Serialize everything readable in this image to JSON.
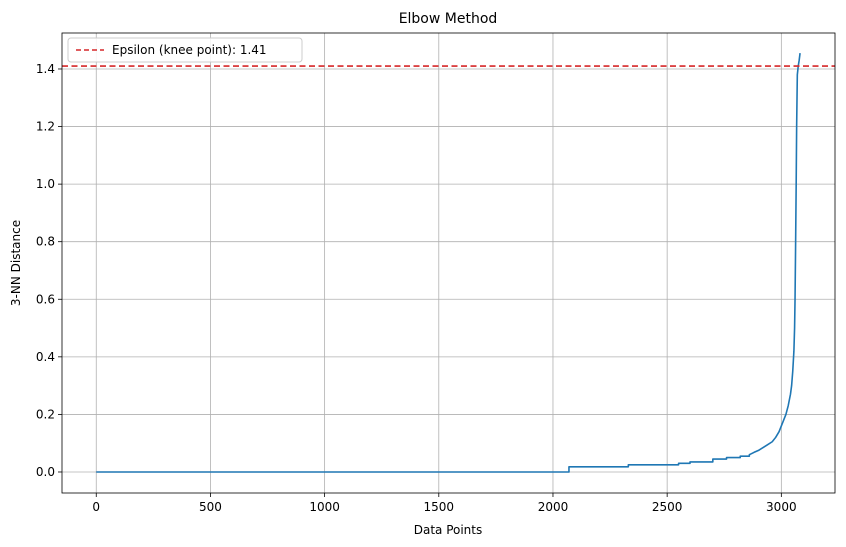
{
  "chart_data": {
    "type": "line",
    "title": "Elbow Method",
    "xlabel": "Data Points",
    "ylabel": "3-NN Distance",
    "xlim": [
      -150,
      3235
    ],
    "ylim": [
      -0.073,
      1.525
    ],
    "xticks": [
      0,
      500,
      1000,
      1500,
      2000,
      2500,
      3000
    ],
    "xtick_labels": [
      "0",
      "500",
      "1000",
      "1500",
      "2000",
      "2500",
      "3000"
    ],
    "yticks": [
      0.0,
      0.2,
      0.4,
      0.6,
      0.8,
      1.0,
      1.2,
      1.4
    ],
    "ytick_labels": [
      "0.0",
      "0.2",
      "0.4",
      "0.6",
      "0.8",
      "1.0",
      "1.2",
      "1.4"
    ],
    "grid": true,
    "legend_position": "top-left",
    "series": [
      {
        "name": "",
        "color": "#1f77b4",
        "style": "solid",
        "x": [
          0,
          2070,
          2070,
          2330,
          2330,
          2550,
          2550,
          2600,
          2600,
          2700,
          2700,
          2760,
          2760,
          2820,
          2820,
          2860,
          2860,
          2880,
          2900,
          2920,
          2940,
          2960,
          2975,
          2990,
          3000,
          3010,
          3020,
          3030,
          3040,
          3045,
          3050,
          3055,
          3058,
          3060,
          3062,
          3065,
          3067,
          3070,
          3074,
          3078,
          3082
        ],
        "y": [
          0.0,
          0.0,
          0.018,
          0.018,
          0.025,
          0.025,
          0.03,
          0.03,
          0.035,
          0.035,
          0.045,
          0.045,
          0.05,
          0.05,
          0.055,
          0.055,
          0.06,
          0.068,
          0.075,
          0.085,
          0.095,
          0.105,
          0.12,
          0.14,
          0.16,
          0.18,
          0.2,
          0.23,
          0.27,
          0.3,
          0.35,
          0.42,
          0.5,
          0.6,
          0.75,
          1.0,
          1.2,
          1.38,
          1.41,
          1.43,
          1.455
        ]
      }
    ],
    "hlines": [
      {
        "name": "Epsilon (knee point): 1.41",
        "y": 1.41,
        "color": "#d62728",
        "style": "dashed"
      }
    ]
  }
}
